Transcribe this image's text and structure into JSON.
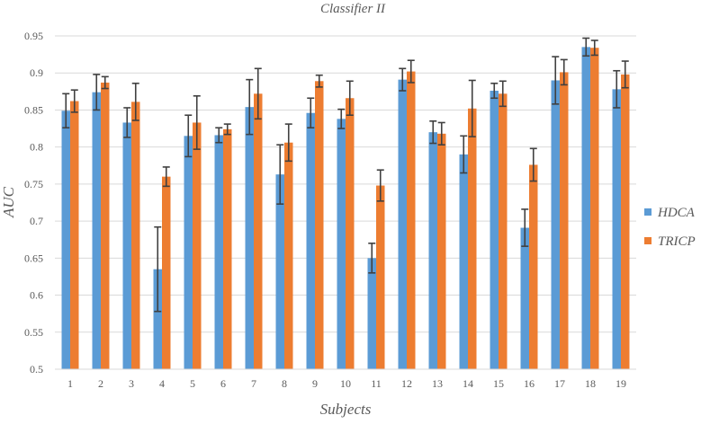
{
  "chart_data": {
    "type": "bar",
    "title": "Classifier II",
    "xlabel": "Subjects",
    "ylabel": "AUC",
    "ylim": [
      0.5,
      0.95
    ],
    "yticks": [
      0.5,
      0.55,
      0.6,
      0.65,
      0.7,
      0.75,
      0.8,
      0.85,
      0.9,
      0.95
    ],
    "ytick_labels": [
      "0.5",
      "0.55",
      "0.6",
      "0.65",
      "0.7",
      "0.75",
      "0.8",
      "0.85",
      "0.9",
      "0.95"
    ],
    "grid": true,
    "legend_position": "right",
    "categories": [
      "1",
      "2",
      "3",
      "4",
      "5",
      "6",
      "7",
      "8",
      "9",
      "10",
      "11",
      "12",
      "13",
      "14",
      "15",
      "16",
      "17",
      "18",
      "19"
    ],
    "series": [
      {
        "name": "HDCA",
        "color": "#5B9BD5",
        "values": [
          0.849,
          0.874,
          0.833,
          0.635,
          0.815,
          0.816,
          0.854,
          0.763,
          0.846,
          0.838,
          0.65,
          0.891,
          0.82,
          0.79,
          0.876,
          0.691,
          0.89,
          0.935,
          0.878
        ],
        "errors": [
          0.023,
          0.024,
          0.02,
          0.057,
          0.028,
          0.01,
          0.037,
          0.04,
          0.02,
          0.013,
          0.02,
          0.015,
          0.015,
          0.025,
          0.01,
          0.025,
          0.032,
          0.012,
          0.025
        ]
      },
      {
        "name": "TRICP",
        "color": "#ED7D31",
        "values": [
          0.862,
          0.887,
          0.861,
          0.76,
          0.833,
          0.824,
          0.872,
          0.806,
          0.889,
          0.866,
          0.748,
          0.902,
          0.818,
          0.852,
          0.872,
          0.776,
          0.901,
          0.934,
          0.898
        ],
        "errors": [
          0.015,
          0.008,
          0.025,
          0.013,
          0.036,
          0.007,
          0.034,
          0.025,
          0.008,
          0.023,
          0.021,
          0.015,
          0.015,
          0.038,
          0.017,
          0.022,
          0.017,
          0.01,
          0.018
        ]
      }
    ]
  }
}
